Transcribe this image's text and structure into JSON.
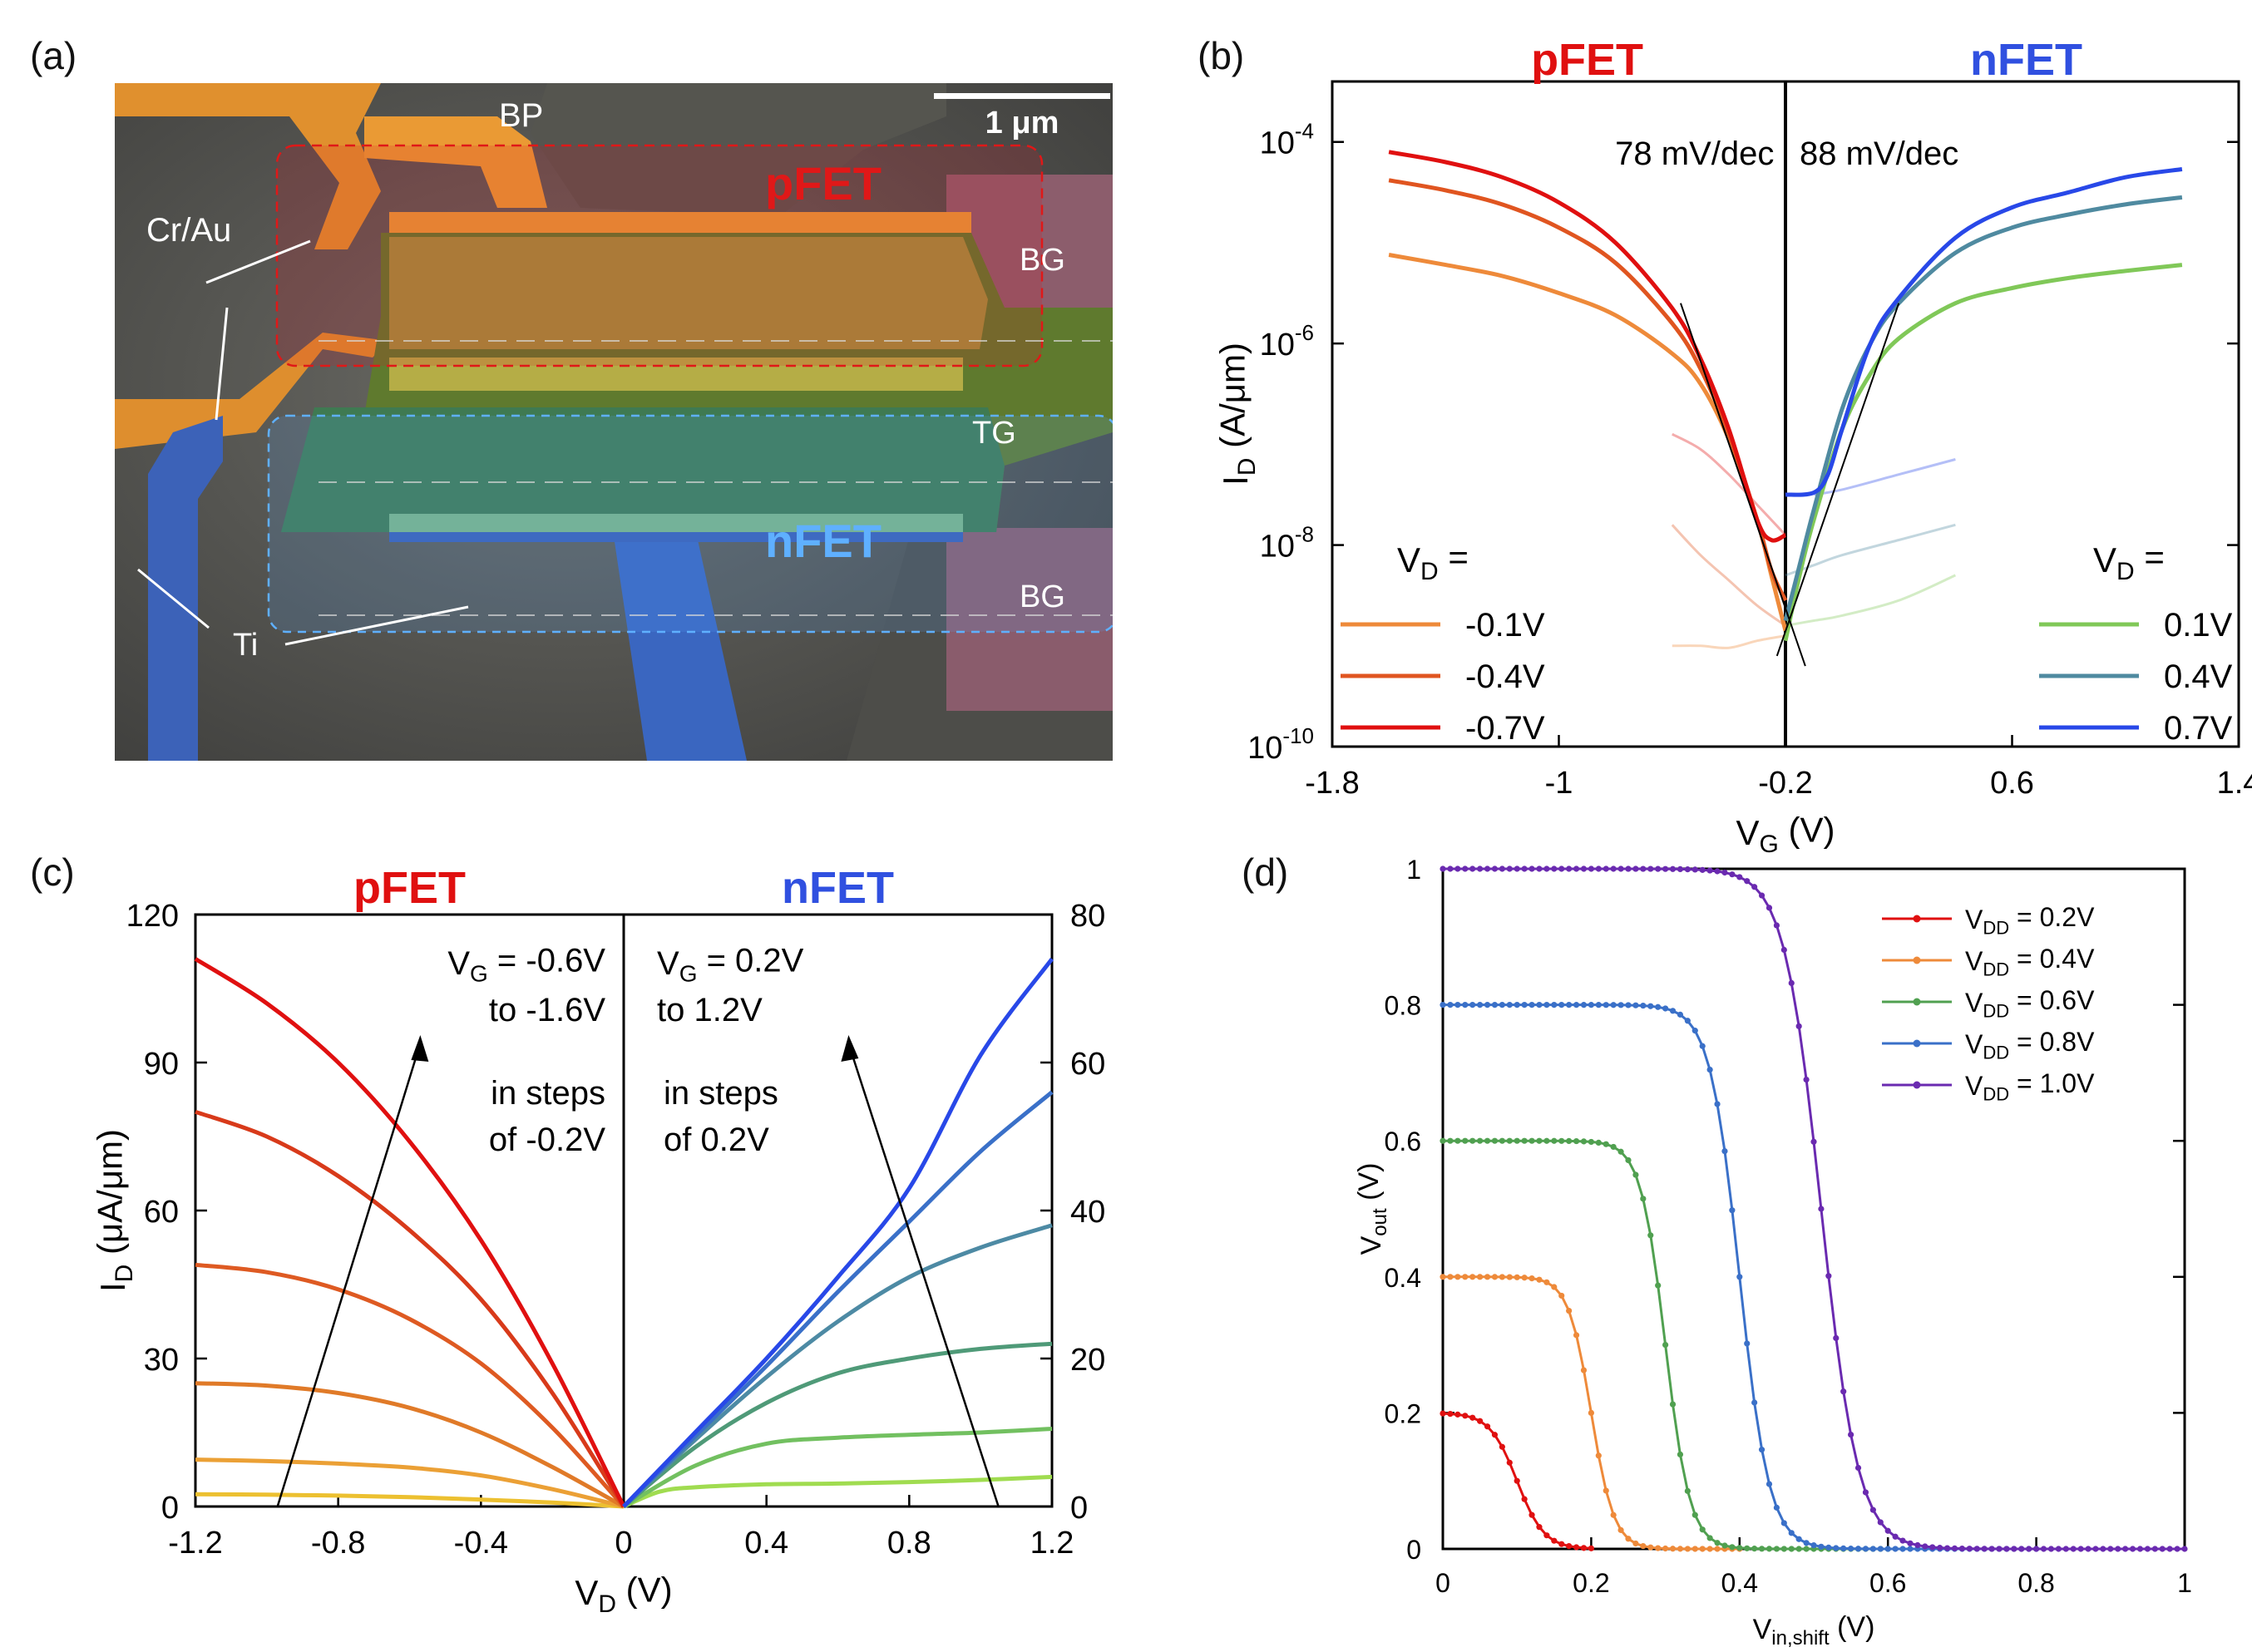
{
  "panels": {
    "a": {
      "letter": "(a)"
    },
    "b": {
      "letter": "(b)"
    },
    "c": {
      "letter": "(c)"
    },
    "d": {
      "letter": "(d)"
    }
  },
  "sem": {
    "scale_bar": "1 μm",
    "labels": {
      "bp": "BP",
      "cr_au": "Cr/Au",
      "pfet": "pFET",
      "bg_top": "BG",
      "tg": "TG",
      "nfet": "nFET",
      "bg_bottom": "BG",
      "ti": "Ti"
    }
  },
  "colors": {
    "red": "#e01010",
    "blue": "#3050e0",
    "p_01": "#ee8a3a",
    "p_04": "#e05520",
    "p_07": "#e01010",
    "n_01": "#80c858",
    "n_04": "#4f8aa0",
    "n_07": "#2848e8"
  },
  "chart_data": [
    {
      "id": "b",
      "type": "line",
      "xlabel": "V",
      "xlabel_sub": "G",
      "xlabel_unit": " (V)",
      "ylabel": "I",
      "ylabel_sub": "D",
      "ylabel_unit": " (A/μm)",
      "xlim": [
        -1.8,
        1.4
      ],
      "ylim_log10": [
        -10,
        -3.4
      ],
      "xticks": [
        -1.8,
        -1,
        -0.2,
        0.6,
        1.4
      ],
      "xtick_labels": [
        "-1.8",
        "-1",
        "-0.2",
        "0.6",
        "1.4"
      ],
      "yticks": [
        -10,
        -8,
        -6,
        -4
      ],
      "ytick_base": "10",
      "ytick_exp": [
        "-10",
        "-8",
        "-6",
        "-4"
      ],
      "pfet_title": "pFET",
      "nfet_title": "nFET",
      "ss_left": "78 mV/dec",
      "ss_right": "88 mV/dec",
      "legend_left_title": "V",
      "legend_left_sub": "D",
      "legend_left_eq": " =",
      "legend_right_title": "V",
      "legend_right_sub": "D",
      "legend_right_eq": " =",
      "divider_x": -0.2,
      "series": [
        {
          "name": "-0.1V",
          "group": "p",
          "x": [
            -1.6,
            -1.4,
            -1.2,
            -1.0,
            -0.8,
            -0.6,
            -0.5,
            -0.4,
            -0.3,
            -0.25,
            -0.2
          ],
          "log10_y": [
            -5.12,
            -5.22,
            -5.33,
            -5.5,
            -5.72,
            -6.1,
            -6.4,
            -6.95,
            -7.75,
            -8.3,
            -8.85
          ]
        },
        {
          "name": "-0.4V",
          "group": "p",
          "x": [
            -1.6,
            -1.4,
            -1.2,
            -1.0,
            -0.8,
            -0.6,
            -0.5,
            -0.4,
            -0.3,
            -0.25,
            -0.2
          ],
          "log10_y": [
            -4.38,
            -4.48,
            -4.62,
            -4.85,
            -5.2,
            -5.8,
            -6.25,
            -6.9,
            -7.75,
            -8.25,
            -8.55
          ]
        },
        {
          "name": "-0.7V",
          "group": "p",
          "x": [
            -1.6,
            -1.4,
            -1.2,
            -1.0,
            -0.8,
            -0.6,
            -0.5,
            -0.4,
            -0.3,
            -0.25,
            -0.2
          ],
          "log10_y": [
            -4.1,
            -4.2,
            -4.35,
            -4.6,
            -5.0,
            -5.65,
            -6.15,
            -6.85,
            -7.75,
            -7.95,
            -7.9
          ]
        },
        {
          "name": "0.1V",
          "group": "n",
          "x": [
            -0.2,
            -0.15,
            -0.1,
            0.0,
            0.1,
            0.2,
            0.4,
            0.6,
            0.8,
            1.0,
            1.2
          ],
          "log10_y": [
            -8.95,
            -8.3,
            -7.75,
            -6.85,
            -6.3,
            -5.95,
            -5.6,
            -5.45,
            -5.35,
            -5.28,
            -5.22
          ]
        },
        {
          "name": "0.4V",
          "group": "n",
          "x": [
            -0.2,
            -0.15,
            -0.1,
            0.0,
            0.1,
            0.2,
            0.4,
            0.6,
            0.8,
            1.0,
            1.2
          ],
          "log10_y": [
            -8.75,
            -8.2,
            -7.65,
            -6.65,
            -6.0,
            -5.6,
            -5.1,
            -4.85,
            -4.72,
            -4.62,
            -4.55
          ]
        },
        {
          "name": "0.7V",
          "group": "n",
          "x": [
            -0.2,
            -0.1,
            -0.05,
            0.0,
            0.1,
            0.2,
            0.4,
            0.6,
            0.8,
            1.0,
            1.2
          ],
          "log10_y": [
            -7.5,
            -7.48,
            -7.3,
            -6.85,
            -6.0,
            -5.55,
            -4.95,
            -4.65,
            -4.5,
            -4.35,
            -4.27
          ]
        }
      ],
      "faded": [
        {
          "group": "p01",
          "x": [
            -0.6,
            -0.5,
            -0.4,
            -0.3,
            -0.2
          ],
          "log10_y": [
            -9.0,
            -9.0,
            -9.02,
            -8.95,
            -8.9
          ]
        },
        {
          "group": "p04",
          "x": [
            -0.6,
            -0.5,
            -0.4,
            -0.3,
            -0.2
          ],
          "log10_y": [
            -7.8,
            -8.1,
            -8.35,
            -8.6,
            -8.8
          ]
        },
        {
          "group": "p07",
          "x": [
            -0.6,
            -0.5,
            -0.4,
            -0.3,
            -0.2
          ],
          "log10_y": [
            -6.9,
            -7.05,
            -7.3,
            -7.6,
            -7.9
          ]
        },
        {
          "group": "n01",
          "x": [
            -0.2,
            -0.1,
            0.0,
            0.2,
            0.4
          ],
          "log10_y": [
            -8.8,
            -8.75,
            -8.7,
            -8.55,
            -8.3
          ]
        },
        {
          "group": "n04",
          "x": [
            -0.2,
            -0.1,
            0.0,
            0.2,
            0.4
          ],
          "log10_y": [
            -8.3,
            -8.2,
            -8.1,
            -7.95,
            -7.8
          ]
        },
        {
          "group": "n07",
          "x": [
            -0.1,
            0.0,
            0.2,
            0.4
          ],
          "log10_y": [
            -7.5,
            -7.45,
            -7.3,
            -7.15
          ]
        }
      ],
      "fit_lines": [
        {
          "x": [
            -0.57,
            -0.13
          ],
          "log10_y": [
            -5.6,
            -9.2
          ]
        },
        {
          "x": [
            -0.23,
            0.2
          ],
          "log10_y": [
            -9.1,
            -5.6
          ]
        }
      ]
    },
    {
      "id": "c",
      "type": "line",
      "xlabel": "V",
      "xlabel_sub": "D",
      "xlabel_unit": " (V)",
      "ylabel": "I",
      "ylabel_sub": "D",
      "ylabel_unit": " (μA/μm)",
      "pfet_title": "pFET",
      "nfet_title": "nFET",
      "left": {
        "xlim": [
          -1.2,
          0
        ],
        "ylim": [
          0,
          120
        ],
        "xticks": [
          -1.2,
          -0.8,
          -0.4,
          0
        ],
        "xtick_labels": [
          "-1.2",
          "-0.8",
          "-0.4",
          "0"
        ],
        "yticks": [
          0,
          30,
          60,
          90,
          120
        ],
        "ytick_labels": [
          "0",
          "30",
          "60",
          "90",
          "120"
        ],
        "annotation": [
          "V",
          "G",
          " = -0.6V",
          "to -1.6V",
          "in steps",
          "of -0.2V"
        ],
        "series": [
          {
            "name": "VG=-0.6V",
            "color": "#ecc030",
            "x": [
              -1.2,
              -1.0,
              -0.8,
              -0.6,
              -0.4,
              -0.2,
              0
            ],
            "y": [
              2.5,
              2.4,
              2.2,
              1.9,
              1.4,
              0.8,
              0
            ]
          },
          {
            "name": "VG=-0.8V",
            "color": "#eba035",
            "x": [
              -1.2,
              -1.0,
              -0.8,
              -0.6,
              -0.4,
              -0.2,
              0
            ],
            "y": [
              9.5,
              9.2,
              8.7,
              7.9,
              6.3,
              3.5,
              0
            ]
          },
          {
            "name": "VG=-1.0V",
            "color": "#e07a28",
            "x": [
              -1.2,
              -1.0,
              -0.8,
              -0.6,
              -0.4,
              -0.2,
              0
            ],
            "y": [
              25,
              24.5,
              23,
              20,
              15,
              8,
              0
            ]
          },
          {
            "name": "VG=-1.2V",
            "color": "#de5a22",
            "x": [
              -1.2,
              -1.0,
              -0.8,
              -0.6,
              -0.4,
              -0.2,
              0
            ],
            "y": [
              49,
              47.5,
              44,
              38,
              29,
              16,
              0
            ]
          },
          {
            "name": "VG=-1.4V",
            "color": "#d83a1a",
            "x": [
              -1.2,
              -1.0,
              -0.8,
              -0.6,
              -0.4,
              -0.2,
              0
            ],
            "y": [
              80,
              75,
              67,
              56,
              42,
              23,
              0
            ]
          },
          {
            "name": "VG=-1.6V",
            "color": "#e01010",
            "x": [
              -1.2,
              -1.0,
              -0.8,
              -0.6,
              -0.4,
              -0.2,
              0
            ],
            "y": [
              111,
              102,
              90,
              74,
              54,
              29,
              0
            ]
          }
        ]
      },
      "right": {
        "xlim": [
          0,
          1.2
        ],
        "ylim": [
          0,
          80
        ],
        "xticks": [
          0.4,
          0.8,
          1.2
        ],
        "xtick_labels": [
          "0.4",
          "0.8",
          "1.2"
        ],
        "yticks": [
          0,
          20,
          40,
          60,
          80
        ],
        "ytick_labels": [
          "0",
          "20",
          "40",
          "60",
          "80"
        ],
        "annotation": [
          "V",
          "G",
          " = 0.2V",
          "to 1.2V",
          "in steps",
          "of 0.2V"
        ],
        "series": [
          {
            "name": "VG=0.2V",
            "color": "#a0dc50",
            "x": [
              0,
              0.1,
              0.2,
              0.4,
              0.6,
              0.8,
              1.0,
              1.2
            ],
            "y": [
              0,
              2,
              2.6,
              3,
              3.1,
              3.3,
              3.6,
              4
            ]
          },
          {
            "name": "VG=0.4V",
            "color": "#72c060",
            "x": [
              0,
              0.2,
              0.4,
              0.6,
              0.8,
              1.0,
              1.2
            ],
            "y": [
              0,
              5.5,
              8.5,
              9.3,
              9.7,
              10,
              10.5
            ]
          },
          {
            "name": "VG=0.6V",
            "color": "#4f9a78",
            "x": [
              0,
              0.2,
              0.4,
              0.6,
              0.8,
              1.0,
              1.2
            ],
            "y": [
              0,
              8,
              14,
              18,
              20,
              21.3,
              22
            ]
          },
          {
            "name": "VG=0.8V",
            "color": "#4d8aa4",
            "x": [
              0,
              0.2,
              0.4,
              0.6,
              0.8,
              1.0,
              1.2
            ],
            "y": [
              0,
              9,
              17.5,
              25,
              31,
              35,
              38
            ]
          },
          {
            "name": "VG=1.0V",
            "color": "#3a70c8",
            "x": [
              0,
              0.2,
              0.4,
              0.6,
              0.8,
              1.0,
              1.2
            ],
            "y": [
              0,
              9.5,
              19,
              29,
              38.5,
              48,
              56
            ]
          },
          {
            "name": "VG=1.2V",
            "color": "#2848e8",
            "x": [
              0,
              0.2,
              0.4,
              0.6,
              0.8,
              1.0,
              1.2
            ],
            "y": [
              0,
              10,
              20,
              31,
              43,
              61,
              74
            ]
          }
        ]
      }
    },
    {
      "id": "d",
      "type": "line",
      "xlabel": "V",
      "xlabel_sub": "in,shift",
      "xlabel_unit": " (V)",
      "ylabel": "V",
      "ylabel_sub": "out",
      "ylabel_unit": " (V)",
      "xlim": [
        0,
        1
      ],
      "ylim": [
        0,
        1
      ],
      "xticks": [
        0,
        0.2,
        0.4,
        0.6,
        0.8,
        1
      ],
      "xtick_labels": [
        "0",
        "0.2",
        "0.4",
        "0.6",
        "0.8",
        "1"
      ],
      "yticks": [
        0,
        0.2,
        0.4,
        0.6,
        0.8,
        1
      ],
      "ytick_labels": [
        "0",
        "0.2",
        "0.4",
        "0.6",
        "0.8",
        "1"
      ],
      "series": [
        {
          "legend": "V",
          "sub": "DD",
          "rest": " = 0.2V",
          "vdd": 0.2,
          "vm": 0.1,
          "xmax": 0.2,
          "k": 55,
          "color": "#e01010"
        },
        {
          "legend": "V",
          "sub": "DD",
          "rest": " = 0.4V",
          "vdd": 0.4,
          "vm": 0.2,
          "xmax": 0.4,
          "k": 65,
          "color": "#ee8a3a"
        },
        {
          "legend": "V",
          "sub": "DD",
          "rest": " = 0.6V",
          "vdd": 0.6,
          "vm": 0.3,
          "xmax": 0.6,
          "k": 60,
          "color": "#50a050"
        },
        {
          "legend": "V",
          "sub": "DD",
          "rest": " = 0.8V",
          "vdd": 0.8,
          "vm": 0.4,
          "xmax": 0.8,
          "k": 50,
          "color": "#3a70c8"
        },
        {
          "legend": "V",
          "sub": "DD",
          "rest": " = 1.0V",
          "vdd": 1.0,
          "vm": 0.51,
          "xmax": 1.0,
          "k": 40,
          "color": "#6a2ab0"
        }
      ]
    }
  ]
}
